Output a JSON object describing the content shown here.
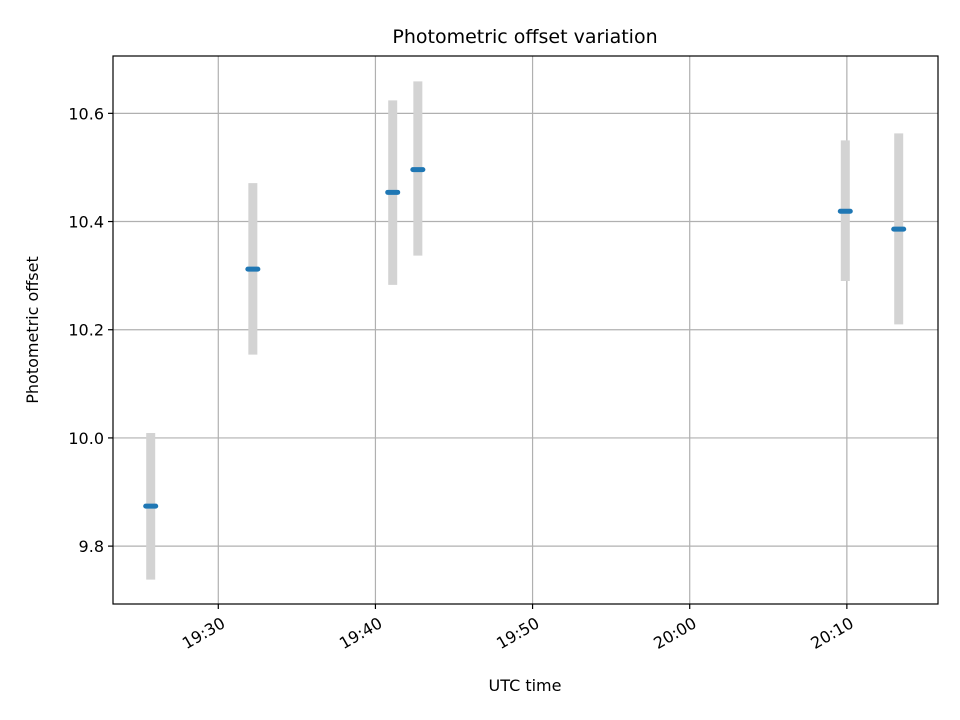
{
  "chart_data": {
    "type": "scatter",
    "title": "Photometric offset variation",
    "xlabel": "UTC time",
    "ylabel": "Photometric offset",
    "x_tick_labels": [
      "19:30",
      "19:40",
      "19:50",
      "20:00",
      "20:10"
    ],
    "y_tick_labels": [
      "9.8",
      "10.0",
      "10.2",
      "10.4",
      "10.6"
    ],
    "x_ticks": [
      "19:30",
      "19:40",
      "19:50",
      "20:00",
      "20:10"
    ],
    "y_ticks": [
      9.8,
      10.0,
      10.2,
      10.4,
      10.6
    ],
    "xlim": [
      "19:23:18",
      "20:15:48"
    ],
    "ylim": [
      9.693,
      10.706
    ],
    "grid": true,
    "series": [
      {
        "points": [
          {
            "x": "19:25:42",
            "y": 9.874,
            "err_low": 9.738,
            "err_high": 10.009
          },
          {
            "x": "19:32:12",
            "y": 10.312,
            "err_low": 10.154,
            "err_high": 10.471
          },
          {
            "x": "19:41:06",
            "y": 10.454,
            "err_low": 10.283,
            "err_high": 10.624
          },
          {
            "x": "19:42:42",
            "y": 10.496,
            "err_low": 10.337,
            "err_high": 10.659
          },
          {
            "x": "20:09:54",
            "y": 10.419,
            "err_low": 10.29,
            "err_high": 10.55
          },
          {
            "x": "20:13:18",
            "y": 10.386,
            "err_low": 10.21,
            "err_high": 10.563
          }
        ]
      }
    ],
    "colors": {
      "marker": "#1f77b4",
      "errorbar": "#d3d3d3",
      "grid": "#b0b0b0",
      "axes": "#000000"
    }
  }
}
